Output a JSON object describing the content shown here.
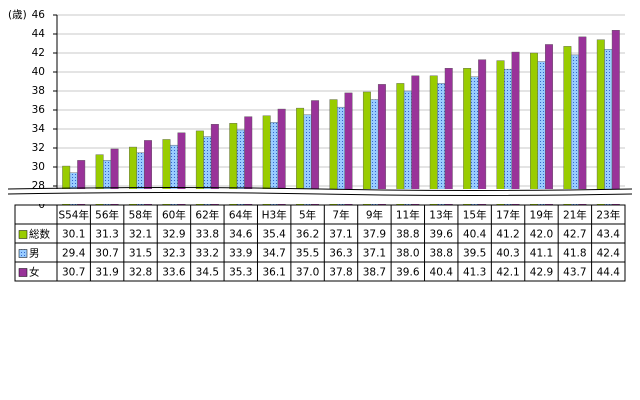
{
  "chart_data": {
    "type": "bar",
    "y_unit_label": "(歳)",
    "categories": [
      "S54年",
      "56年",
      "58年",
      "60年",
      "62年",
      "64年",
      "H3年",
      "5年",
      "7年",
      "9年",
      "11年",
      "13年",
      "15年",
      "17年",
      "19年",
      "21年",
      "23年"
    ],
    "series": [
      {
        "name": "総数",
        "color": "#99cc00",
        "values": [
          30.1,
          31.3,
          32.1,
          32.9,
          33.8,
          34.6,
          35.4,
          36.2,
          37.1,
          37.9,
          38.8,
          39.6,
          40.4,
          41.2,
          42.0,
          42.7,
          43.4
        ],
        "value_labels": [
          "30.1",
          "31.3",
          "32.1",
          "32.9",
          "33.8",
          "34.6",
          "35.4",
          "36.2",
          "37.1",
          "37.9",
          "38.8",
          "39.6",
          "40.4",
          "41.2",
          "42.0",
          "42.7",
          "43.4"
        ]
      },
      {
        "name": "男",
        "color": "#99ccff",
        "values": [
          29.4,
          30.7,
          31.5,
          32.3,
          33.2,
          33.9,
          34.7,
          35.5,
          36.3,
          37.1,
          38.0,
          38.8,
          39.5,
          40.3,
          41.1,
          41.8,
          42.4
        ],
        "value_labels": [
          "29.4",
          "30.7",
          "31.5",
          "32.3",
          "33.2",
          "33.9",
          "34.7",
          "35.5",
          "36.3",
          "37.1",
          "38.0",
          "38.8",
          "39.5",
          "40.3",
          "41.1",
          "41.8",
          "42.4"
        ]
      },
      {
        "name": "女",
        "color": "#993399",
        "values": [
          30.7,
          31.9,
          32.8,
          33.6,
          34.5,
          35.3,
          36.1,
          37.0,
          37.8,
          38.7,
          39.6,
          40.4,
          41.3,
          42.1,
          42.9,
          43.7,
          44.4
        ],
        "value_labels": [
          "30.7",
          "31.9",
          "32.8",
          "33.6",
          "34.5",
          "35.3",
          "36.1",
          "37.0",
          "37.8",
          "38.7",
          "39.6",
          "40.4",
          "41.3",
          "42.1",
          "42.9",
          "43.7",
          "44.4"
        ]
      }
    ],
    "ylim": [
      0,
      46
    ],
    "yticks": [
      0,
      28,
      30,
      32,
      34,
      36,
      38,
      40,
      42,
      44,
      46
    ],
    "axis_break": true,
    "grid": true
  }
}
